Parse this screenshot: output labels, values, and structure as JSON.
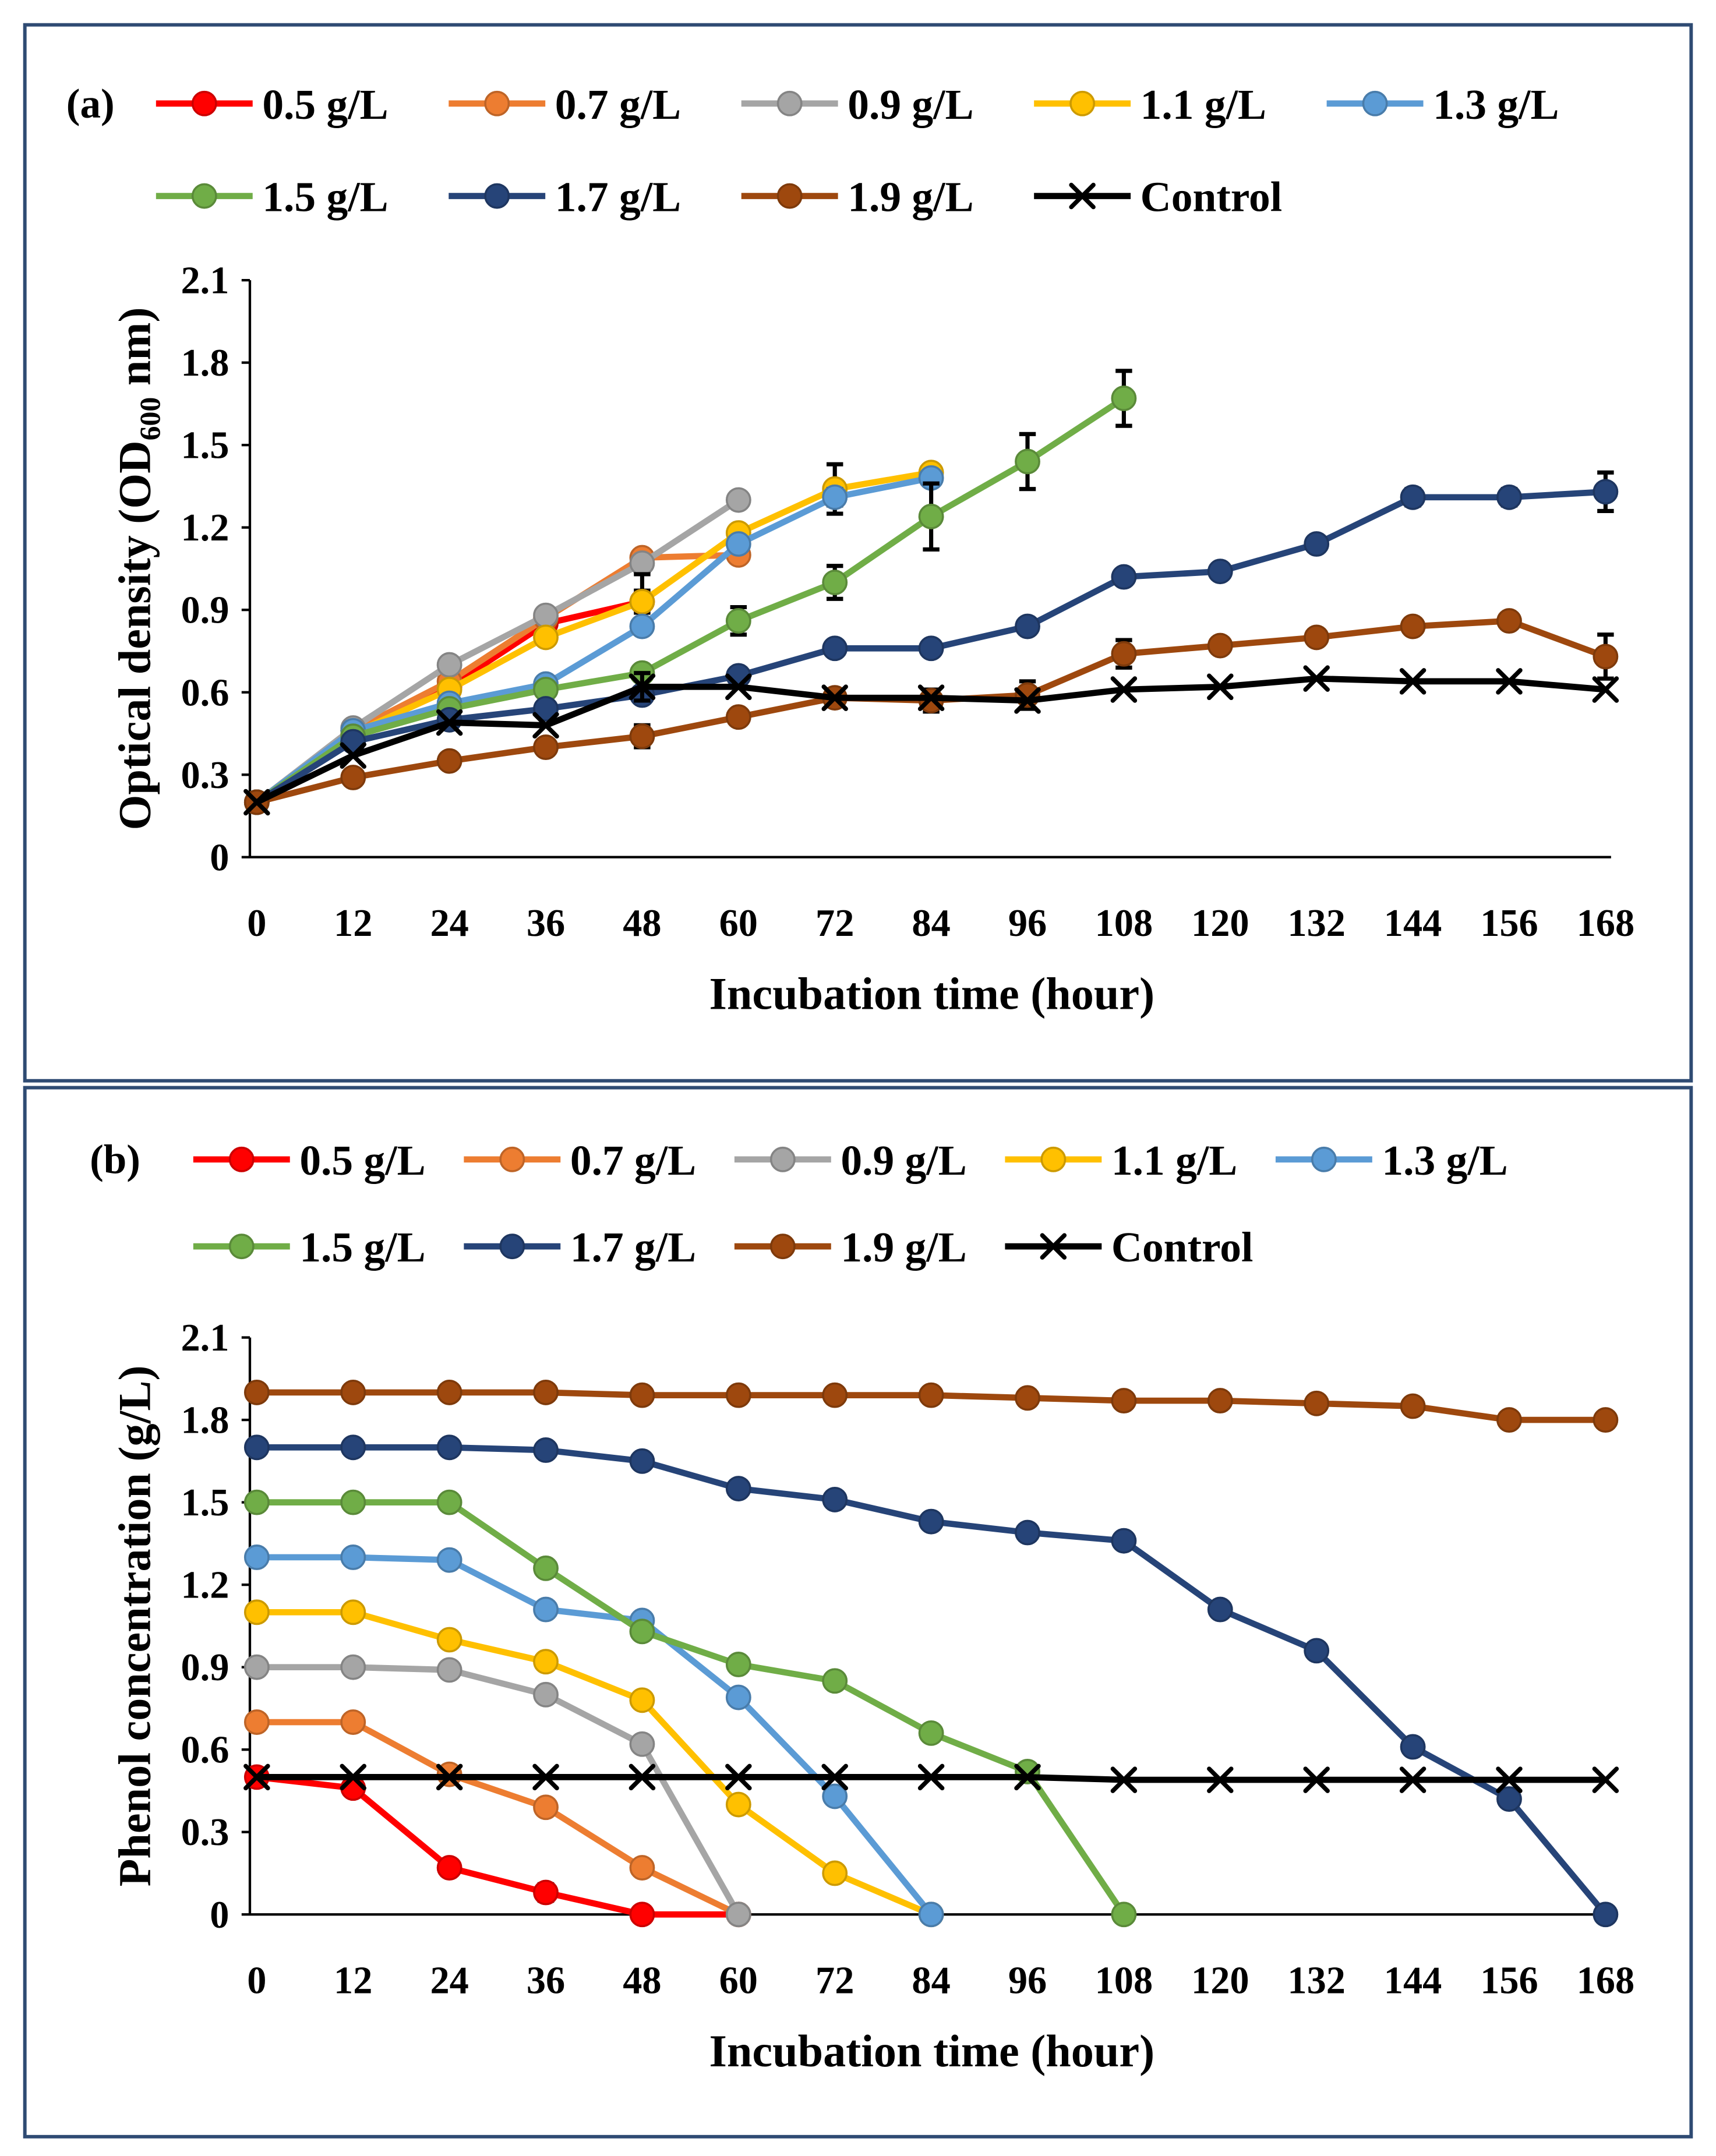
{
  "figure": {
    "background": "#FFFFFF",
    "border_color": "#2F4B73",
    "axis_color": "#000000",
    "errorbar_color": "#000000"
  },
  "chart_data": [
    {
      "type": "line",
      "panel_label": "(a)",
      "xlabel": "Incubation time (hour)",
      "ylabel": {
        "prefix": "Optical density (OD",
        "subscript": "600",
        "suffix": " nm)"
      },
      "xlim": [
        0,
        168
      ],
      "ylim": [
        0,
        2.1
      ],
      "xticks": [
        0,
        12,
        24,
        36,
        48,
        60,
        72,
        84,
        96,
        108,
        120,
        132,
        144,
        156,
        168
      ],
      "yticks": [
        "0",
        "0.3",
        "0.6",
        "0.9",
        "1.2",
        "1.5",
        "1.8",
        "2.1"
      ],
      "grid": false,
      "legend": "top",
      "series": [
        {
          "name": "0.5 g/L",
          "color": "#FF0000",
          "marker": "circle",
          "x": [
            0,
            12,
            24,
            36,
            48
          ],
          "y": [
            0.2,
            0.46,
            0.62,
            0.85,
            0.93
          ],
          "err": [
            0,
            0,
            0,
            0.03,
            0.04
          ]
        },
        {
          "name": "0.7 g/L",
          "color": "#ED7D31",
          "marker": "circle",
          "x": [
            0,
            12,
            24,
            36,
            48,
            60
          ],
          "y": [
            0.2,
            0.46,
            0.64,
            0.87,
            1.09,
            1.1
          ],
          "err": [
            0,
            0,
            0,
            0,
            0,
            0.02
          ]
        },
        {
          "name": "0.9 g/L",
          "color": "#A5A5A5",
          "marker": "circle",
          "x": [
            0,
            12,
            24,
            36,
            48,
            60
          ],
          "y": [
            0.2,
            0.47,
            0.7,
            0.88,
            1.07,
            1.3
          ],
          "err": [
            0,
            0,
            0,
            0.02,
            0,
            0
          ]
        },
        {
          "name": "1.1 g/L",
          "color": "#FFC000",
          "marker": "circle",
          "x": [
            0,
            12,
            24,
            36,
            48,
            60,
            72,
            84
          ],
          "y": [
            0.2,
            0.45,
            0.61,
            0.8,
            0.93,
            1.18,
            1.34,
            1.4
          ],
          "err": [
            0,
            0,
            0,
            0,
            0.1,
            0,
            0.09,
            0.01
          ]
        },
        {
          "name": "1.3 g/L",
          "color": "#5B9BD5",
          "marker": "circle",
          "x": [
            0,
            12,
            24,
            36,
            48,
            60,
            72,
            84
          ],
          "y": [
            0.2,
            0.46,
            0.56,
            0.63,
            0.84,
            1.14,
            1.31,
            1.38
          ],
          "err": [
            0,
            0,
            0,
            0,
            0,
            0.02,
            0.03,
            0.02
          ]
        },
        {
          "name": "1.5 g/L",
          "color": "#70AD47",
          "marker": "circle",
          "x": [
            0,
            12,
            24,
            36,
            48,
            60,
            72,
            84,
            96,
            108
          ],
          "y": [
            0.2,
            0.44,
            0.54,
            0.61,
            0.67,
            0.86,
            1.0,
            1.24,
            1.44,
            1.67
          ],
          "err": [
            0,
            0,
            0,
            0,
            0,
            0.05,
            0.06,
            0.12,
            0.1,
            0.1
          ]
        },
        {
          "name": "1.7 g/L",
          "color": "#264478",
          "marker": "circle",
          "x": [
            0,
            12,
            24,
            36,
            48,
            60,
            72,
            84,
            96,
            108,
            120,
            132,
            144,
            156,
            168
          ],
          "y": [
            0.2,
            0.42,
            0.5,
            0.54,
            0.59,
            0.66,
            0.76,
            0.76,
            0.84,
            1.02,
            1.04,
            1.14,
            1.31,
            1.31,
            1.33
          ],
          "err": [
            0,
            0,
            0,
            0,
            0,
            0,
            0,
            0,
            0,
            0,
            0,
            0,
            0.03,
            0.03,
            0.07
          ]
        },
        {
          "name": "1.9 g/L",
          "color": "#9E480E",
          "marker": "circle",
          "x": [
            0,
            12,
            24,
            36,
            48,
            60,
            72,
            84,
            96,
            108,
            120,
            132,
            144,
            156,
            168
          ],
          "y": [
            0.2,
            0.29,
            0.35,
            0.4,
            0.44,
            0.51,
            0.58,
            0.57,
            0.59,
            0.74,
            0.77,
            0.8,
            0.84,
            0.86,
            0.73
          ],
          "err": [
            0,
            0,
            0,
            0,
            0.04,
            0,
            0.03,
            0.04,
            0.05,
            0.05,
            0,
            0,
            0,
            0,
            0.08
          ]
        },
        {
          "name": "Control",
          "color": "#000000",
          "marker": "x",
          "x": [
            0,
            12,
            24,
            36,
            48,
            60,
            72,
            84,
            96,
            108,
            120,
            132,
            144,
            156,
            168
          ],
          "y": [
            0.2,
            0.37,
            0.49,
            0.48,
            0.62,
            0.62,
            0.58,
            0.58,
            0.57,
            0.61,
            0.62,
            0.65,
            0.64,
            0.64,
            0.61
          ],
          "err": [
            0,
            0,
            0,
            0,
            0.05,
            0,
            0,
            0,
            0,
            0,
            0,
            0,
            0,
            0,
            0
          ]
        }
      ]
    },
    {
      "type": "line",
      "panel_label": "(b)",
      "xlabel": "Incubation time (hour)",
      "ylabel": {
        "prefix": "Phenol concentration (g/L)"
      },
      "xlim": [
        0,
        168
      ],
      "ylim": [
        0,
        2.1
      ],
      "xticks": [
        0,
        12,
        24,
        36,
        48,
        60,
        72,
        84,
        96,
        108,
        120,
        132,
        144,
        156,
        168
      ],
      "yticks": [
        "0",
        "0.3",
        "0.6",
        "0.9",
        "1.2",
        "1.5",
        "1.8",
        "2.1"
      ],
      "grid": false,
      "legend": "top",
      "series": [
        {
          "name": "0.5 g/L",
          "color": "#FF0000",
          "marker": "circle",
          "x": [
            0,
            12,
            24,
            36,
            48,
            60
          ],
          "y": [
            0.5,
            0.46,
            0.17,
            0.08,
            0.0,
            0.0
          ],
          "err": [
            0,
            0,
            0.02,
            0.03,
            0,
            0
          ]
        },
        {
          "name": "0.7 g/L",
          "color": "#ED7D31",
          "marker": "circle",
          "x": [
            0,
            12,
            24,
            36,
            48,
            60
          ],
          "y": [
            0.7,
            0.7,
            0.51,
            0.39,
            0.17,
            0.0
          ],
          "err": [
            0,
            0,
            0,
            0,
            0.02,
            0
          ]
        },
        {
          "name": "0.9 g/L",
          "color": "#A5A5A5",
          "marker": "circle",
          "x": [
            0,
            12,
            24,
            36,
            48,
            60
          ],
          "y": [
            0.9,
            0.9,
            0.89,
            0.8,
            0.62,
            0.0
          ]
        },
        {
          "name": "1.1 g/L",
          "color": "#FFC000",
          "marker": "circle",
          "x": [
            0,
            12,
            24,
            36,
            48,
            60,
            72,
            84
          ],
          "y": [
            1.1,
            1.1,
            1.0,
            0.92,
            0.78,
            0.4,
            0.15,
            0.0
          ]
        },
        {
          "name": "1.3 g/L",
          "color": "#5B9BD5",
          "marker": "circle",
          "x": [
            0,
            12,
            24,
            36,
            48,
            60,
            72,
            84
          ],
          "y": [
            1.3,
            1.3,
            1.29,
            1.11,
            1.07,
            0.79,
            0.43,
            0.0
          ]
        },
        {
          "name": "1.5 g/L",
          "color": "#70AD47",
          "marker": "circle",
          "x": [
            0,
            12,
            24,
            36,
            48,
            60,
            72,
            84,
            96,
            108
          ],
          "y": [
            1.5,
            1.5,
            1.5,
            1.26,
            1.03,
            0.91,
            0.85,
            0.66,
            0.52,
            0.0
          ]
        },
        {
          "name": "1.7 g/L",
          "color": "#264478",
          "marker": "circle",
          "x": [
            0,
            12,
            24,
            36,
            48,
            60,
            72,
            84,
            96,
            108,
            120,
            132,
            144,
            156,
            168
          ],
          "y": [
            1.7,
            1.7,
            1.7,
            1.69,
            1.65,
            1.55,
            1.51,
            1.43,
            1.39,
            1.36,
            1.11,
            0.96,
            0.61,
            0.42,
            0.0
          ]
        },
        {
          "name": "1.9 g/L",
          "color": "#9E480E",
          "marker": "circle",
          "x": [
            0,
            12,
            24,
            36,
            48,
            60,
            72,
            84,
            96,
            108,
            120,
            132,
            144,
            156,
            168
          ],
          "y": [
            1.9,
            1.9,
            1.9,
            1.9,
            1.89,
            1.89,
            1.89,
            1.89,
            1.88,
            1.87,
            1.87,
            1.86,
            1.85,
            1.8,
            1.8
          ]
        },
        {
          "name": "Control",
          "color": "#000000",
          "marker": "x",
          "x": [
            0,
            12,
            24,
            36,
            48,
            60,
            72,
            84,
            96,
            108,
            120,
            132,
            144,
            156,
            168
          ],
          "y": [
            0.5,
            0.5,
            0.5,
            0.5,
            0.5,
            0.5,
            0.5,
            0.5,
            0.5,
            0.49,
            0.49,
            0.49,
            0.49,
            0.49,
            0.49
          ]
        }
      ]
    }
  ]
}
